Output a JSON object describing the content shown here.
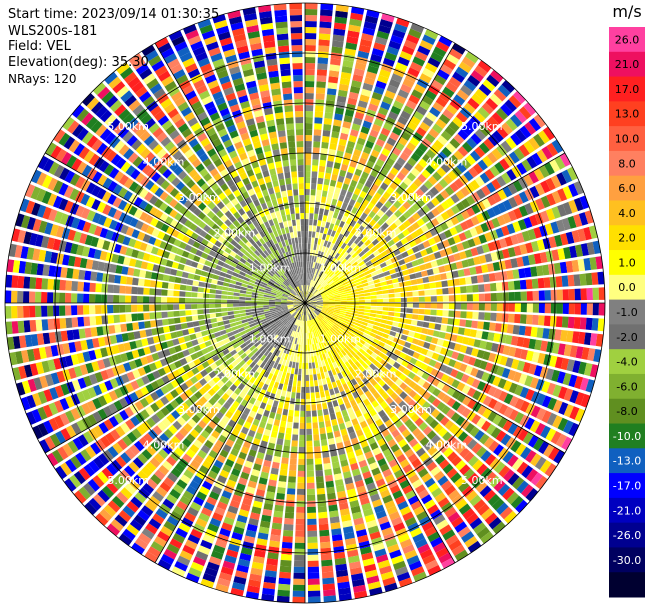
{
  "header": {
    "start_time": "Start time: 2023/09/14 01:30:35",
    "instrument": "WLS200s-181",
    "field": "Field: VEL",
    "elevation": "Elevation(deg): 35.30",
    "nrays": "NRays: 120"
  },
  "chart_data": {
    "type": "heatmap",
    "projection": "polar-ppi",
    "field": "VEL",
    "units": "m/s",
    "n_rays": 120,
    "elevation_deg": 35.3,
    "range_km_max": 6.0,
    "range_rings_km": [
      1,
      2,
      3,
      4,
      5
    ],
    "range_ring_labels": [
      "1.00km",
      "2.00km",
      "3.00km",
      "4.00km",
      "5.00km"
    ],
    "colorbar": {
      "title": "m/s",
      "ticks": [
        "26.0",
        "21.0",
        "17.0",
        "13.0",
        "10.0",
        "8.0",
        "6.0",
        "4.0",
        "2.0",
        "1.0",
        "0.0",
        "-1.0",
        "-2.0",
        "-4.0",
        "-6.0",
        "-8.0",
        "-10.0",
        "-13.0",
        "-17.0",
        "-21.0",
        "-26.0",
        "-30.0"
      ],
      "colors": [
        "#ff40a0",
        "#ee1060",
        "#ff2020",
        "#ff4020",
        "#ff6040",
        "#ff8060",
        "#ffa040",
        "#ffc020",
        "#ffe000",
        "#ffff00",
        "#ffff80",
        "#808080",
        "#707070",
        "#a0d040",
        "#80b030",
        "#608f20",
        "#207f20",
        "#1060c0",
        "#0000ff",
        "#0000c0",
        "#000090",
        "#000060",
        "#000030"
      ]
    },
    "velocity_pattern": {
      "near_positive_sector_deg": [
        20,
        200
      ],
      "near_negative_sector_deg": [
        200,
        380
      ]
    }
  }
}
